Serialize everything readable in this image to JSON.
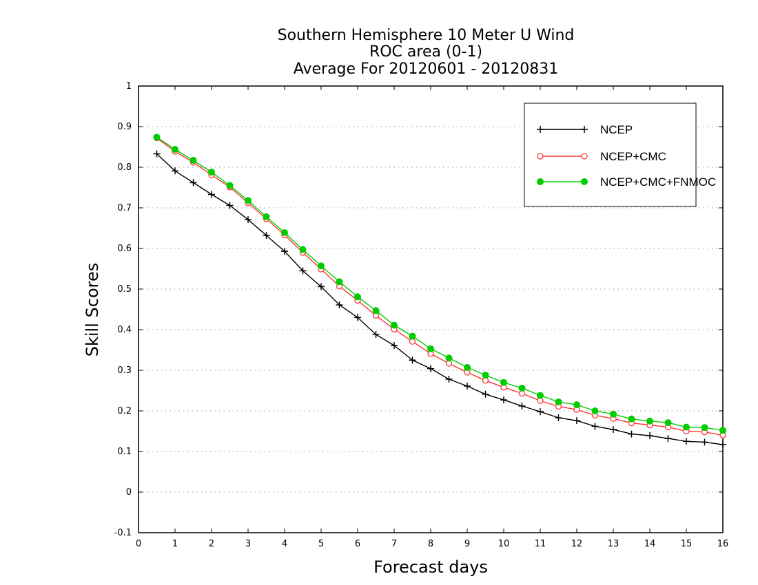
{
  "chart_data": {
    "type": "line",
    "title": "Southern Hemisphere 10 Meter U Wind",
    "subtitle": "ROC area (0-1)",
    "subtitle2": "Average For 20120601 - 20120831",
    "xlabel": "Forecast days",
    "ylabel": "Skill Scores",
    "xlim": [
      0,
      16
    ],
    "ylim": [
      -0.1,
      1
    ],
    "x_ticks": [
      "0",
      "1",
      "2",
      "3",
      "4",
      "5",
      "6",
      "7",
      "8",
      "9",
      "10",
      "11",
      "12",
      "13",
      "14",
      "15",
      "16"
    ],
    "y_ticks": [
      "-0.1",
      "0",
      "0.1",
      "0.2",
      "0.3",
      "0.4",
      "0.5",
      "0.6",
      "0.7",
      "0.8",
      "0.9",
      "1"
    ],
    "grid": "horizontal-dotted",
    "legend_position": "top-right",
    "x": [
      0.5,
      1,
      1.5,
      2,
      2.5,
      3,
      3.5,
      4,
      4.5,
      5,
      5.5,
      6,
      6.5,
      7,
      7.5,
      8,
      8.5,
      9,
      9.5,
      10,
      10.5,
      11,
      11.5,
      12,
      12.5,
      13,
      13.5,
      14,
      14.5,
      15,
      15.5,
      16
    ],
    "series": [
      {
        "name": "NCEP",
        "color": "#000000",
        "marker": "plus",
        "values": [
          0.833,
          0.791,
          0.762,
          0.733,
          0.706,
          0.671,
          0.632,
          0.593,
          0.545,
          0.506,
          0.461,
          0.43,
          0.388,
          0.361,
          0.325,
          0.304,
          0.278,
          0.261,
          0.241,
          0.227,
          0.212,
          0.198,
          0.183,
          0.176,
          0.162,
          0.154,
          0.143,
          0.139,
          0.132,
          0.125,
          0.123,
          0.117
        ]
      },
      {
        "name": "NCEP+CMC",
        "color": "#ff3333",
        "marker": "open-circle",
        "values": [
          0.872,
          0.839,
          0.812,
          0.781,
          0.751,
          0.712,
          0.673,
          0.633,
          0.59,
          0.549,
          0.507,
          0.472,
          0.435,
          0.401,
          0.371,
          0.341,
          0.317,
          0.295,
          0.275,
          0.258,
          0.243,
          0.225,
          0.211,
          0.203,
          0.189,
          0.181,
          0.17,
          0.165,
          0.16,
          0.15,
          0.148,
          0.14
        ]
      },
      {
        "name": "NCEP+CMC+FNMOC",
        "color": "#00cc00",
        "marker": "filled-circle",
        "values": [
          0.874,
          0.844,
          0.817,
          0.788,
          0.755,
          0.718,
          0.678,
          0.639,
          0.597,
          0.557,
          0.518,
          0.481,
          0.447,
          0.411,
          0.384,
          0.353,
          0.33,
          0.307,
          0.288,
          0.27,
          0.256,
          0.238,
          0.222,
          0.215,
          0.2,
          0.192,
          0.18,
          0.175,
          0.171,
          0.16,
          0.159,
          0.152
        ]
      }
    ]
  }
}
